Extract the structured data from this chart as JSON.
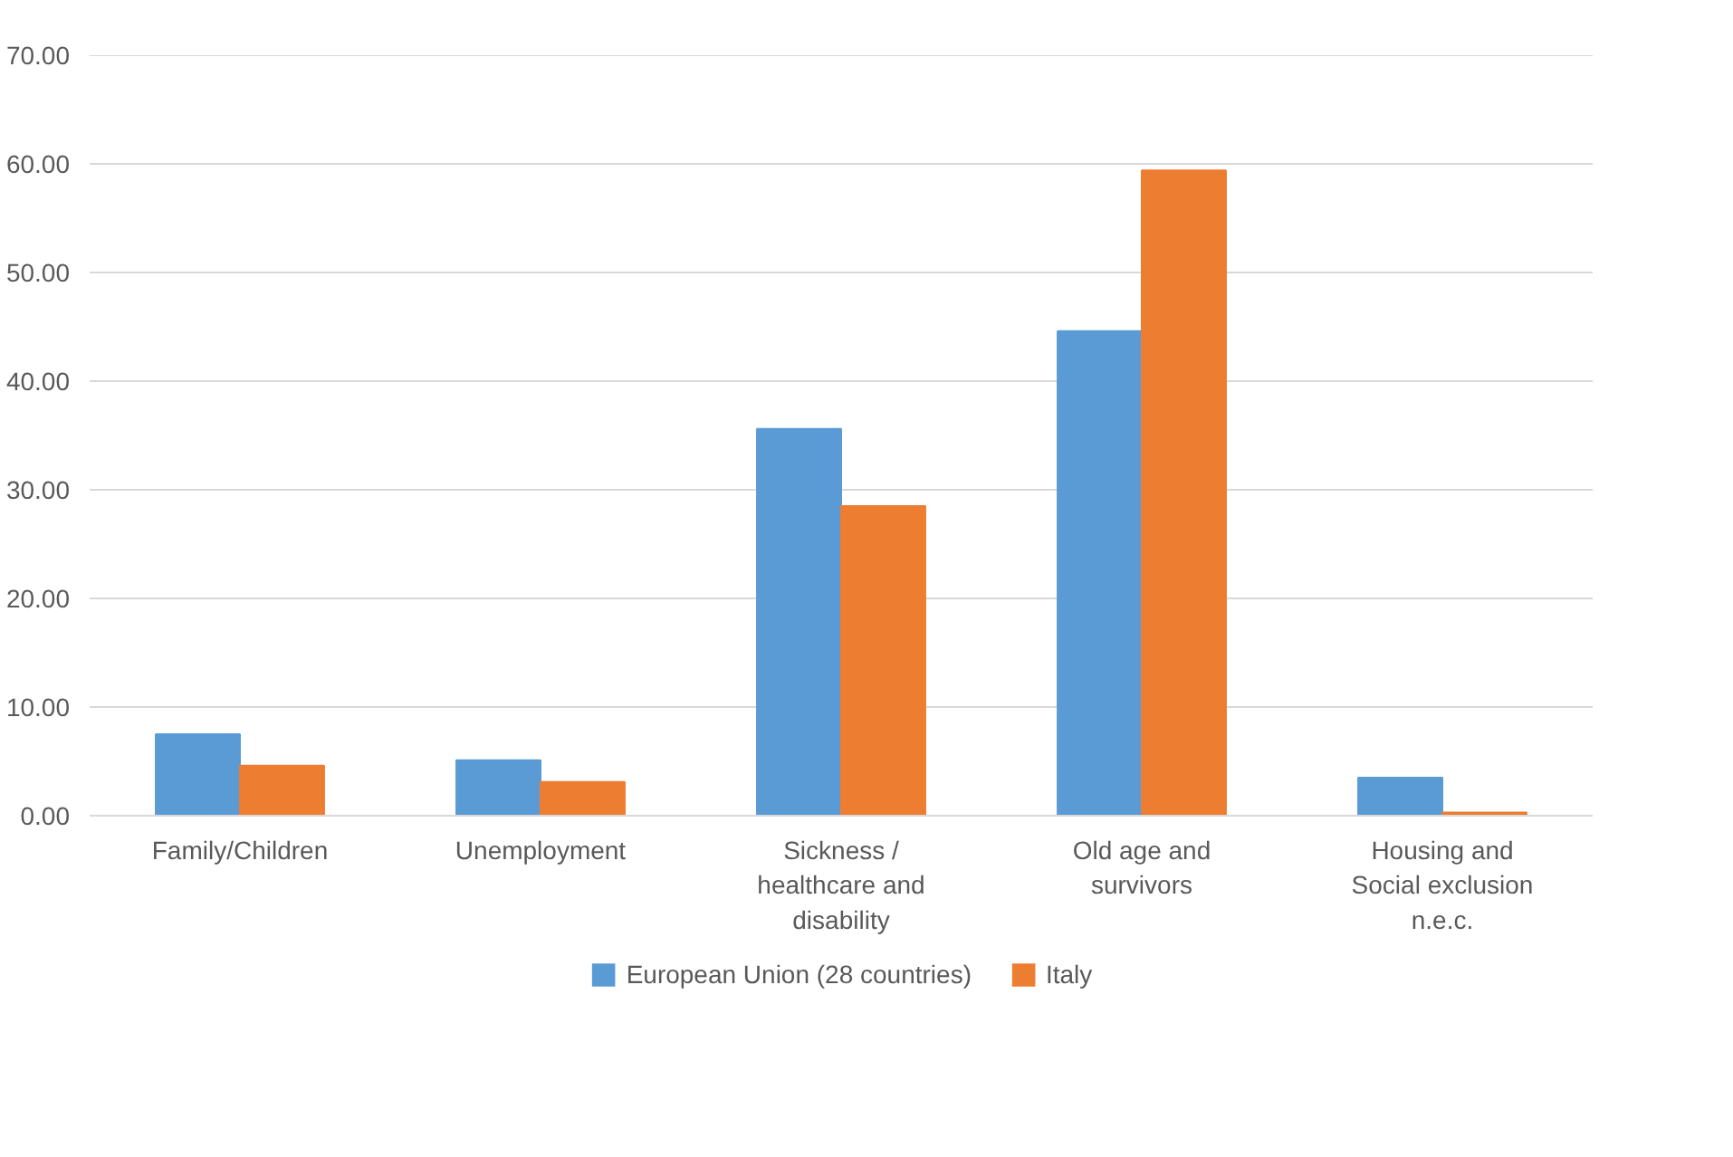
{
  "chart_data": {
    "type": "bar",
    "categories": [
      "Family/Children",
      "Unemployment",
      "Sickness / healthcare and disability",
      "Old age and survivors",
      "Housing and Social exclusion n.e.c."
    ],
    "series": [
      {
        "name": "European Union (28 countries)",
        "color": "#5b9bd5",
        "values": [
          7.5,
          5.1,
          35.6,
          44.6,
          3.5
        ]
      },
      {
        "name": "Italy",
        "color": "#ed7d31",
        "values": [
          4.6,
          3.1,
          28.5,
          59.4,
          0.3
        ]
      }
    ],
    "ylim": [
      0,
      70
    ],
    "yticks": [
      {
        "value": 0,
        "label": "0.00"
      },
      {
        "value": 10,
        "label": "10.00"
      },
      {
        "value": 20,
        "label": "20.00"
      },
      {
        "value": 30,
        "label": "30.00"
      },
      {
        "value": 40,
        "label": "40.00"
      },
      {
        "value": 50,
        "label": "50.00"
      },
      {
        "value": 60,
        "label": "60.00"
      },
      {
        "value": 70,
        "label": "70.00"
      }
    ],
    "grid": "y",
    "legend": "bottom"
  }
}
